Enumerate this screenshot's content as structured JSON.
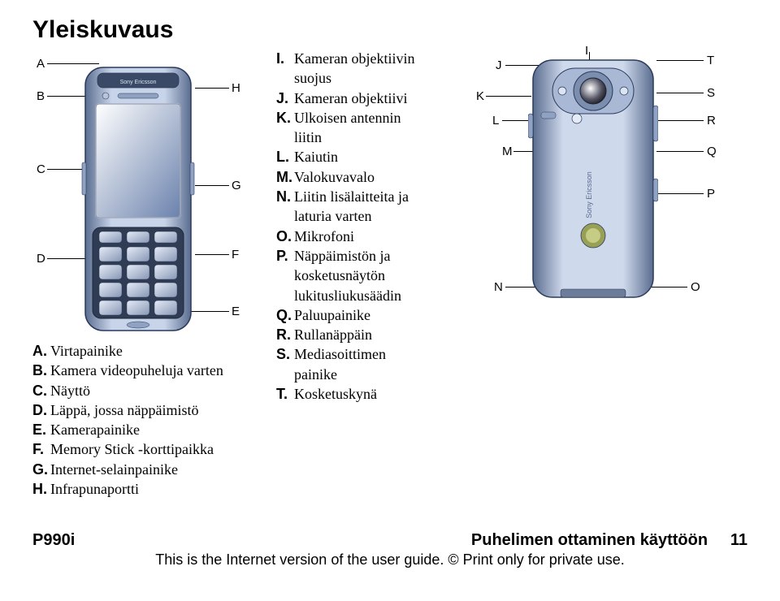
{
  "title": "Yleiskuvaus",
  "legend_left": [
    {
      "l": "A.",
      "t": "Virtapainike"
    },
    {
      "l": "B.",
      "t": "Kamera videopuheluja varten"
    },
    {
      "l": "C.",
      "t": "Näyttö"
    },
    {
      "l": "D.",
      "t": "Läppä, jossa näppäimistö"
    },
    {
      "l": "E.",
      "t": "Kamerapainike"
    },
    {
      "l": "F.",
      "t": "Memory Stick -korttipaikka"
    },
    {
      "l": "G.",
      "t": "Internet-selainpainike"
    },
    {
      "l": "H.",
      "t": "Infrapunaportti"
    }
  ],
  "legend_mid": [
    {
      "l": "I.",
      "t": "Kameran objektiivin suojus"
    },
    {
      "l": "J.",
      "t": "Kameran objektiivi"
    },
    {
      "l": "K.",
      "t": "Ulkoisen antennin liitin"
    },
    {
      "l": "L.",
      "t": "Kaiutin"
    },
    {
      "l": "M.",
      "t": "Valokuvavalo"
    },
    {
      "l": "N.",
      "t": "Liitin lisälaitteita ja laturia varten"
    },
    {
      "l": "O.",
      "t": "Mikrofoni"
    },
    {
      "l": "P.",
      "t": "Näppäimistön ja kosketusnäytön lukitusliukusäädin"
    },
    {
      "l": "Q.",
      "t": "Paluupainike"
    },
    {
      "l": "R.",
      "t": "Rullanäppäin"
    },
    {
      "l": "S.",
      "t": "Mediasoittimen painike"
    },
    {
      "l": "T.",
      "t": "Kosketuskynä"
    }
  ],
  "front_letters": {
    "A": "A",
    "B": "B",
    "C": "C",
    "D": "D",
    "E": "E",
    "F": "F",
    "G": "G",
    "H": "H"
  },
  "back_letters": {
    "I": "I",
    "J": "J",
    "K": "K",
    "L": "L",
    "M": "M",
    "N": "N",
    "O": "O",
    "P": "P",
    "Q": "Q",
    "R": "R",
    "S": "S",
    "T": "T"
  },
  "footer": {
    "model": "P990i",
    "section": "Puhelimen ottaminen käyttöön",
    "page": "11",
    "notice": "This is the Internet version of the user guide. © Print only for private use."
  },
  "colors": {
    "phone_body_light": "#d5dff0",
    "phone_body_dark": "#8fa2c2",
    "phone_outline": "#2a3a5a",
    "screen_top": "#ffffff",
    "screen_bottom": "#7d93bf",
    "keypad": "#3e4d68",
    "key_light": "#c9d4e6",
    "label_font": "Arial"
  }
}
